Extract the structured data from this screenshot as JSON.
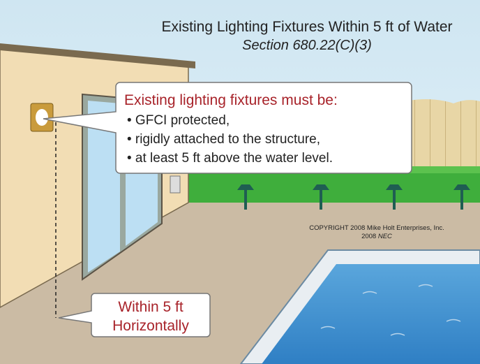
{
  "header": {
    "title": "Existing Lighting Fixtures Within 5 ft of Water",
    "subtitle": "Section 680.22(C)(3)"
  },
  "callout_requirements": {
    "heading": "Existing lighting fixtures must be:",
    "bullets": [
      "• GFCI protected,",
      "• rigidly attached to the structure,",
      "• at least 5 ft above the water level."
    ]
  },
  "copyright": {
    "line1": "COPYRIGHT 2008  Mike Holt Enterprises, Inc.",
    "year": "2008",
    "code": "NEC"
  },
  "callout_distance": {
    "lines": [
      "Within 5 ft",
      "Horizontally"
    ]
  }
}
